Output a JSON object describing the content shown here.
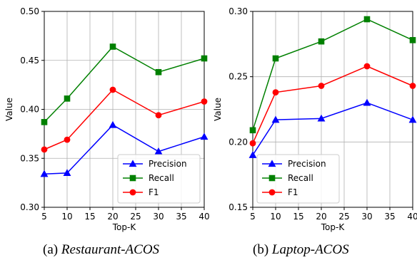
{
  "captions": [
    {
      "prefix": "(a) ",
      "name": "Restaurant-ACOS"
    },
    {
      "prefix": "(b) ",
      "name": "Laptop-ACOS"
    }
  ],
  "colors": {
    "Precision": "#0000ff",
    "Recall": "#008000",
    "F1": "#ff0000"
  },
  "chart_data": [
    {
      "type": "line",
      "xlabel": "Top-K",
      "ylabel": "Value",
      "xlim": [
        5,
        40
      ],
      "ylim": [
        0.3,
        0.5
      ],
      "xticks": [
        5,
        10,
        15,
        20,
        25,
        30,
        35,
        40
      ],
      "xtick_labels": [
        "5",
        "10",
        "15",
        "20",
        "25",
        "30",
        "35",
        "40"
      ],
      "yticks": [
        0.3,
        0.35,
        0.4,
        0.45,
        0.5
      ],
      "ytick_labels": [
        "0.30",
        "0.35",
        "0.40",
        "0.45",
        "0.50"
      ],
      "grid": true,
      "legend": "bottom-right",
      "x": [
        5,
        10,
        20,
        30,
        40
      ],
      "series": [
        {
          "name": "Precision",
          "marker": "triangle",
          "values": [
            0.334,
            0.335,
            0.384,
            0.357,
            0.372
          ]
        },
        {
          "name": "Recall",
          "marker": "square",
          "values": [
            0.387,
            0.411,
            0.464,
            0.438,
            0.452
          ]
        },
        {
          "name": "F1",
          "marker": "circle",
          "values": [
            0.359,
            0.369,
            0.42,
            0.394,
            0.408
          ]
        }
      ]
    },
    {
      "type": "line",
      "xlabel": "Top-K",
      "ylabel": "Value",
      "xlim": [
        5,
        40
      ],
      "ylim": [
        0.15,
        0.3
      ],
      "xticks": [
        5,
        10,
        15,
        20,
        25,
        30,
        35,
        40
      ],
      "xtick_labels": [
        "5",
        "10",
        "15",
        "20",
        "25",
        "30",
        "35",
        "40"
      ],
      "yticks": [
        0.15,
        0.2,
        0.25,
        0.3
      ],
      "ytick_labels": [
        "0.15",
        "0.20",
        "0.25",
        "0.30"
      ],
      "grid": true,
      "legend": "bottom-left",
      "x": [
        5,
        10,
        20,
        30,
        40
      ],
      "series": [
        {
          "name": "Precision",
          "marker": "triangle",
          "values": [
            0.19,
            0.217,
            0.218,
            0.23,
            0.217
          ]
        },
        {
          "name": "Recall",
          "marker": "square",
          "values": [
            0.209,
            0.264,
            0.277,
            0.294,
            0.278
          ]
        },
        {
          "name": "F1",
          "marker": "circle",
          "values": [
            0.199,
            0.238,
            0.243,
            0.258,
            0.243
          ]
        }
      ]
    }
  ]
}
